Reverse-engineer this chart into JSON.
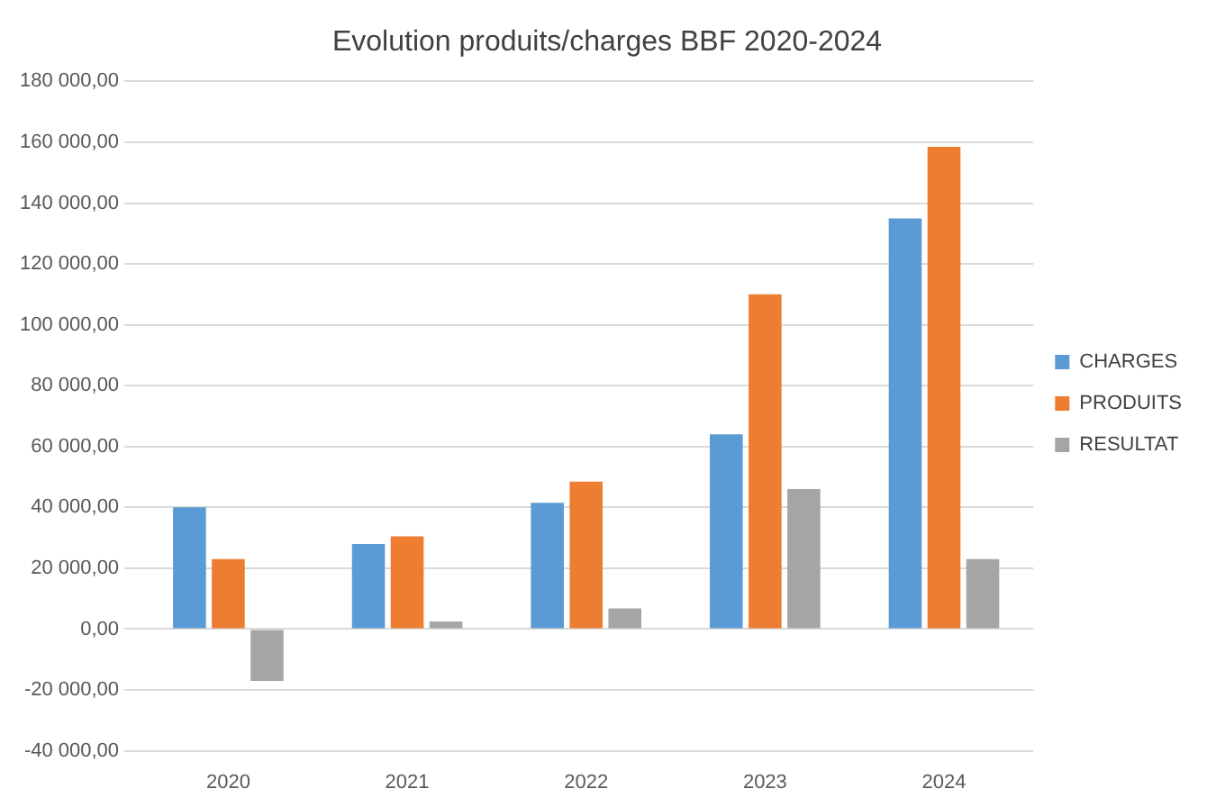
{
  "chart_data": {
    "type": "bar",
    "title": "Evolution produits/charges BBF 2020-2024",
    "categories": [
      "2020",
      "2021",
      "2022",
      "2023",
      "2024"
    ],
    "series": [
      {
        "name": "CHARGES",
        "color": "#5b9bd5",
        "values": [
          40000,
          28000,
          41500,
          64000,
          135000
        ]
      },
      {
        "name": "PRODUITS",
        "color": "#ed7d31",
        "values": [
          23000,
          30500,
          48500,
          110000,
          158500
        ]
      },
      {
        "name": "RESULTAT",
        "color": "#a5a5a5",
        "values": [
          -17000,
          2500,
          6800,
          46000,
          23000
        ]
      }
    ],
    "ylim": [
      -40000,
      180000
    ],
    "yticks": [
      {
        "value": -40000,
        "label": "-40 000,00"
      },
      {
        "value": -20000,
        "label": "-20 000,00"
      },
      {
        "value": 0,
        "label": "0,00"
      },
      {
        "value": 20000,
        "label": "20 000,00"
      },
      {
        "value": 40000,
        "label": "40 000,00"
      },
      {
        "value": 60000,
        "label": "60 000,00"
      },
      {
        "value": 80000,
        "label": "80 000,00"
      },
      {
        "value": 100000,
        "label": "100 000,00"
      },
      {
        "value": 120000,
        "label": "120 000,00"
      },
      {
        "value": 140000,
        "label": "140 000,00"
      },
      {
        "value": 160000,
        "label": "160 000,00"
      },
      {
        "value": 180000,
        "label": "180 000,00"
      }
    ],
    "grid": "y",
    "legend": "right"
  }
}
